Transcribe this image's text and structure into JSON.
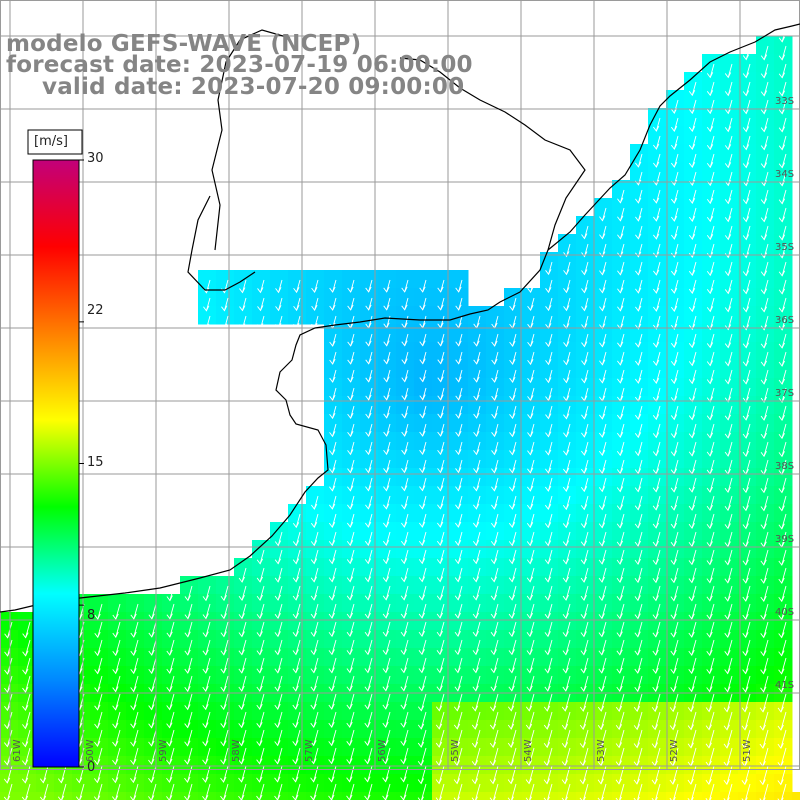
{
  "title": {
    "line1": "modelo GEFS-WAVE (NCEP)",
    "line2": "forecast date: 2023-07-19 06:00:00",
    "line3": "valid date: 2023-07-20 09:00:00"
  },
  "colorbar": {
    "unit": "[m/s]",
    "ticks": [
      {
        "label": "30",
        "value": 30
      },
      {
        "label": "22",
        "value": 22
      },
      {
        "label": "15",
        "value": 15
      },
      {
        "label": "8",
        "value": 8
      },
      {
        "label": "0",
        "value": 0
      }
    ],
    "colors": [
      "#0000ff",
      "#0088ff",
      "#00ffff",
      "#00ff00",
      "#ffff00",
      "#ff8000",
      "#ff0000",
      "#c2007a"
    ]
  },
  "map": {
    "variable": "wind speed and direction",
    "land_color": "#ffffff",
    "coastline_color": "#000000",
    "grid_color": "#9a9a9a",
    "arrow_color": "#ffffff",
    "lat_labels": [
      "33S",
      "34S",
      "35S",
      "36S",
      "37S",
      "38S",
      "39S",
      "40S",
      "41S"
    ],
    "lon_labels": [
      "61W",
      "60W",
      "59W",
      "58W",
      "57W",
      "56W",
      "55W",
      "54W",
      "53W",
      "52W",
      "51W"
    ]
  }
}
